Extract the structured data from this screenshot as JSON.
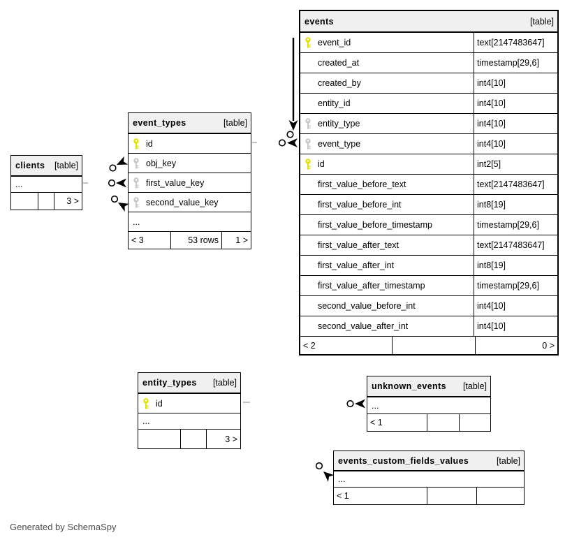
{
  "credit": "Generated by SchemaSpy",
  "colors": {
    "primary_key": "#e2e200",
    "secondary_key": "#c8c8c8",
    "header_bg": "#f0f0f0",
    "border": "#000000"
  },
  "tables": [
    {
      "title": "clients",
      "tag": "[table]",
      "ellipsis": "...",
      "footer": {
        "left": "",
        "center": "",
        "right": "3 >"
      }
    },
    {
      "title": "event_types",
      "tag": "[table]",
      "columns": [
        {
          "name": "id",
          "key": "primary"
        },
        {
          "name": "obj_key",
          "key": "secondary"
        },
        {
          "name": "first_value_key",
          "key": "secondary"
        },
        {
          "name": "second_value_key",
          "key": "secondary"
        }
      ],
      "ellipsis": "...",
      "footer": {
        "left": "< 3",
        "center": "53 rows",
        "right": "1 >"
      }
    },
    {
      "title": "events",
      "tag": "[table]",
      "columns": [
        {
          "name": "event_id",
          "type": "text[2147483647]",
          "key": "primary"
        },
        {
          "name": "created_at",
          "type": "timestamp[29,6]",
          "key": "none"
        },
        {
          "name": "created_by",
          "type": "int4[10]",
          "key": "none"
        },
        {
          "name": "entity_id",
          "type": "int4[10]",
          "key": "none"
        },
        {
          "name": "entity_type",
          "type": "int4[10]",
          "key": "secondary"
        },
        {
          "name": "event_type",
          "type": "int4[10]",
          "key": "secondary"
        },
        {
          "name": "id",
          "type": "int2[5]",
          "key": "primary"
        },
        {
          "name": "first_value_before_text",
          "type": "text[2147483647]",
          "key": "none"
        },
        {
          "name": "first_value_before_int",
          "type": "int8[19]",
          "key": "none"
        },
        {
          "name": "first_value_before_timestamp",
          "type": "timestamp[29,6]",
          "key": "none"
        },
        {
          "name": "first_value_after_text",
          "type": "text[2147483647]",
          "key": "none"
        },
        {
          "name": "first_value_after_int",
          "type": "int8[19]",
          "key": "none"
        },
        {
          "name": "first_value_after_timestamp",
          "type": "timestamp[29,6]",
          "key": "none"
        },
        {
          "name": "second_value_before_int",
          "type": "int4[10]",
          "key": "none"
        },
        {
          "name": "second_value_after_int",
          "type": "int4[10]",
          "key": "none"
        }
      ],
      "footer": {
        "left": "< 2",
        "center": "",
        "right": "0 >"
      }
    },
    {
      "title": "entity_types",
      "tag": "[table]",
      "columns": [
        {
          "name": "id",
          "key": "primary"
        }
      ],
      "ellipsis": "...",
      "footer": {
        "left": "",
        "center": "",
        "right": "3 >"
      }
    },
    {
      "title": "unknown_events",
      "tag": "[table]",
      "ellipsis": "...",
      "footer": {
        "left": "< 1",
        "center": "",
        "right": ""
      }
    },
    {
      "title": "events_custom_fields_values",
      "tag": "[table]",
      "ellipsis": "...",
      "footer": {
        "left": "< 1",
        "center": "",
        "right": ""
      }
    }
  ]
}
